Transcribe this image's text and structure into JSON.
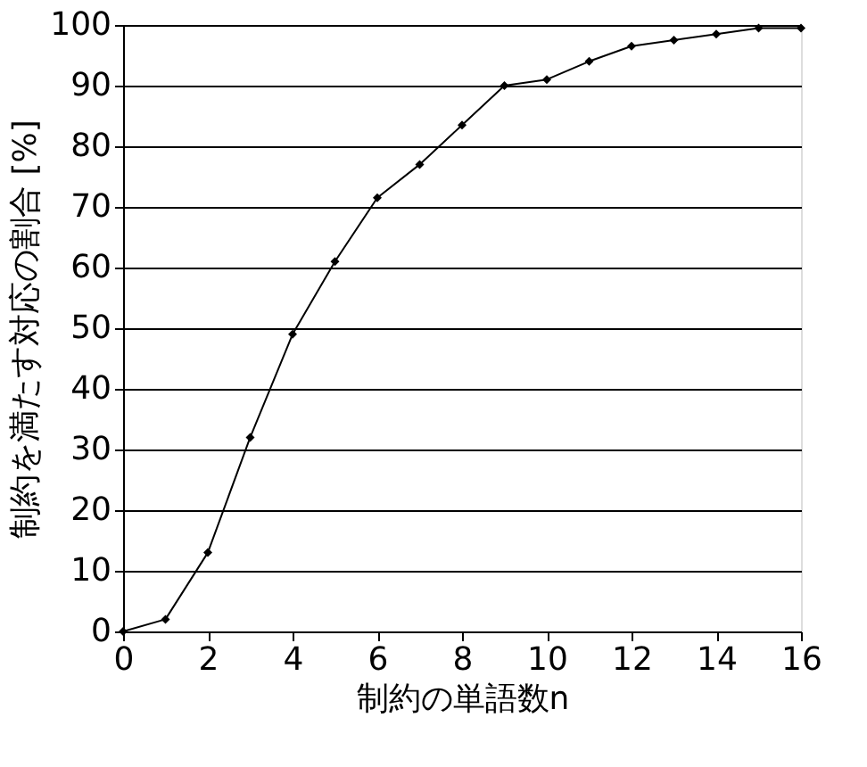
{
  "chart_data": {
    "type": "line",
    "xlabel": "制約の単語数n",
    "ylabel": "制約を満たす対応の割合 [%]",
    "x": [
      0,
      1,
      2,
      3,
      4,
      5,
      6,
      7,
      8,
      9,
      10,
      11,
      12,
      13,
      14,
      15,
      16
    ],
    "series": [
      {
        "color": "#000000",
        "values": [
          0,
          2,
          13,
          32,
          49,
          61,
          71.5,
          77,
          83.5,
          90,
          91,
          94,
          96.5,
          97.5,
          98.5,
          99.5,
          99.5
        ]
      }
    ],
    "xlim": [
      0,
      16
    ],
    "xticks": [
      0,
      2,
      4,
      6,
      8,
      10,
      12,
      14,
      16
    ],
    "ylim": [
      0,
      100
    ],
    "yticks": [
      0,
      10,
      20,
      30,
      40,
      50,
      60,
      70,
      80,
      90,
      100
    ],
    "grid": "y",
    "marker": "diamond",
    "line_style": "solid"
  }
}
